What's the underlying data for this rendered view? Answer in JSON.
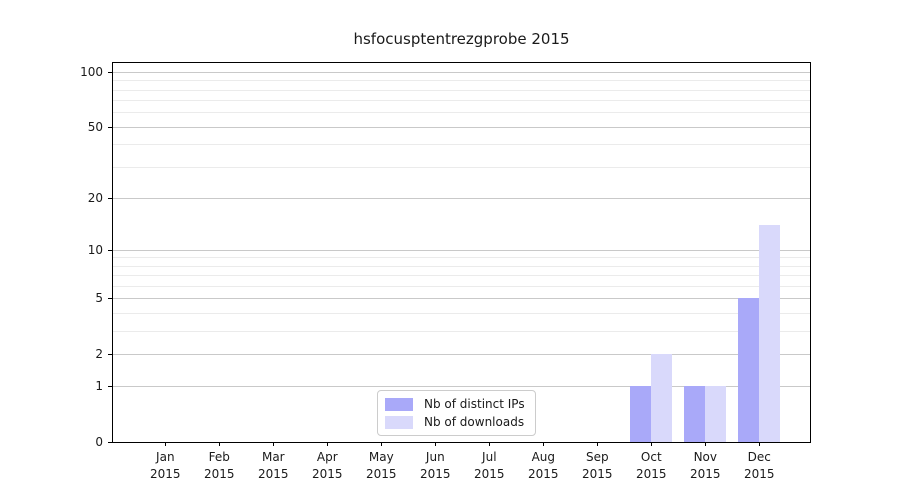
{
  "title": "hsfocusptentrezgprobe 2015",
  "chart_data": {
    "type": "bar",
    "title": "hsfocusptentrezgprobe 2015",
    "categories": [
      "Jan",
      "Feb",
      "Mar",
      "Apr",
      "May",
      "Jun",
      "Jul",
      "Aug",
      "Sep",
      "Oct",
      "Nov",
      "Dec"
    ],
    "category_year": "2015",
    "series": [
      {
        "name": "Nb of distinct IPs",
        "color": "#a9a9f9",
        "values": [
          0,
          0,
          0,
          0,
          0,
          0,
          0,
          0,
          0,
          1,
          1,
          5
        ]
      },
      {
        "name": "Nb of downloads",
        "color": "#d9d9fb",
        "values": [
          0,
          0,
          0,
          0,
          0,
          0,
          0,
          0,
          0,
          2,
          1,
          14
        ]
      }
    ],
    "yscale": "log1p",
    "ylim": [
      0,
      112
    ],
    "y_major_ticks": [
      0,
      1,
      2,
      5,
      10,
      20,
      50,
      100
    ],
    "y_tick_labels": [
      "0",
      "1",
      "2",
      "5",
      "10",
      "20",
      "50",
      "100"
    ],
    "y_minor_gridlines": [
      3,
      4,
      6,
      7,
      8,
      9,
      30,
      40,
      60,
      70,
      80,
      90
    ],
    "grid": "horizontal",
    "legend_position": "lower center",
    "xlabel": "",
    "ylabel": ""
  },
  "colors": {
    "bar_distinct_ips": "#a9a9f9",
    "bar_downloads": "#d9d9fb",
    "grid_major": "#c9c9c9",
    "grid_minor": "#ebebeb",
    "axis_spine": "#000000",
    "text": "#1a1a1a",
    "legend_border": "#cccccc",
    "background": "#ffffff"
  }
}
